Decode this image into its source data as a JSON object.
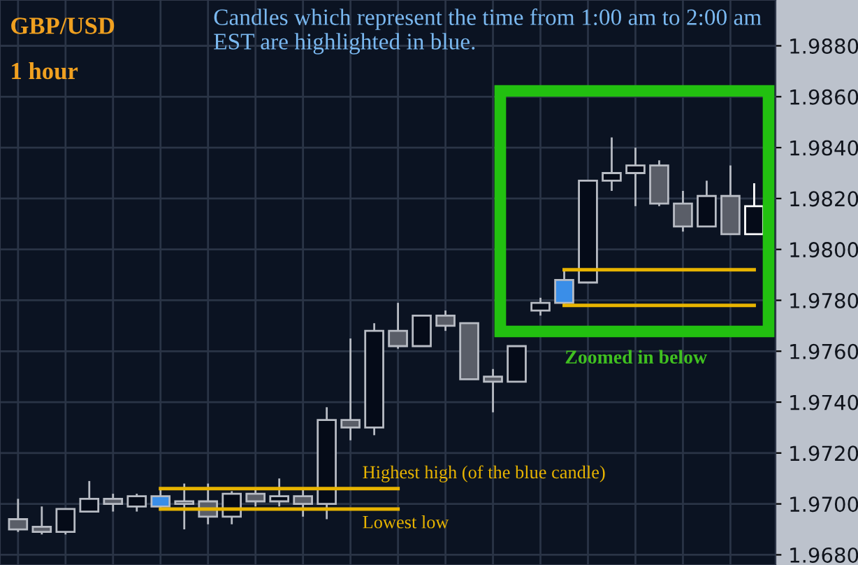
{
  "chart_data": {
    "type": "candlestick",
    "title": "GBP/USD",
    "subtitle": "1 hour",
    "annotations": [
      "Candles which represent the time from 1:00 am to 2:00 am EST are highlighted in blue.",
      "Zoomed in below"
    ],
    "categories": [
      null,
      null,
      null,
      null,
      null,
      null,
      null,
      null,
      null,
      null,
      null,
      null,
      null,
      null,
      null,
      null,
      null,
      null,
      null,
      null,
      null,
      null,
      null,
      null,
      null,
      null,
      null,
      null,
      null,
      null,
      null,
      null
    ],
    "ohlc": [
      [
        1.9694,
        1.9702,
        1.9689,
        1.969
      ],
      [
        1.9691,
        1.9699,
        1.9688,
        1.9689
      ],
      [
        1.9689,
        1.9698,
        1.9688,
        1.9698
      ],
      [
        1.9697,
        1.9709,
        1.9697,
        1.9702
      ],
      [
        1.9702,
        1.9704,
        1.9697,
        1.97
      ],
      [
        1.9699,
        1.9704,
        1.9697,
        1.9703
      ],
      [
        1.9699,
        1.9706,
        1.9698,
        1.9703
      ],
      [
        1.97,
        1.9708,
        1.969,
        1.9701
      ],
      [
        1.9701,
        1.9708,
        1.9692,
        1.9695
      ],
      [
        1.9695,
        1.9705,
        1.9692,
        1.9704
      ],
      [
        1.9704,
        1.9706,
        1.9699,
        1.9701
      ],
      [
        1.9701,
        1.971,
        1.9699,
        1.9703
      ],
      [
        1.9703,
        1.9706,
        1.9695,
        1.97
      ],
      [
        1.97,
        1.9738,
        1.9694,
        1.9733
      ],
      [
        1.9733,
        1.9765,
        1.9725,
        1.973
      ],
      [
        1.973,
        1.9771,
        1.9727,
        1.9768
      ],
      [
        1.9768,
        1.9779,
        1.9761,
        1.9762
      ],
      [
        1.9762,
        1.9774,
        1.9762,
        1.9774
      ],
      [
        1.9774,
        1.9776,
        1.9768,
        1.977
      ],
      [
        1.9771,
        1.9771,
        1.9749,
        1.9749
      ],
      [
        1.975,
        1.9753,
        1.9736,
        1.9748
      ],
      [
        1.9748,
        1.9762,
        1.9748,
        1.9762
      ],
      [
        1.9776,
        1.9781,
        1.9774,
        1.9779
      ],
      [
        1.9779,
        1.9792,
        1.9778,
        1.9788
      ],
      [
        1.9787,
        1.9827,
        1.9787,
        1.9827
      ],
      [
        1.9827,
        1.9844,
        1.9823,
        1.983
      ],
      [
        1.983,
        1.984,
        1.9817,
        1.9833
      ],
      [
        1.9833,
        1.9835,
        1.9817,
        1.9818
      ],
      [
        1.9818,
        1.9823,
        1.9807,
        1.9809
      ],
      [
        1.9809,
        1.9827,
        1.9809,
        1.9821
      ],
      [
        1.9821,
        1.9833,
        1.9806,
        1.9806
      ],
      [
        1.9806,
        1.9826,
        1.9806,
        1.9817
      ]
    ],
    "colors": [
      "#5a5e68",
      "#5a5e68",
      "#050b18",
      "#050b18",
      "#5a5e68",
      "#050b18",
      "#3a8ee8",
      "#050b18",
      "#5a5e68",
      "#050b18",
      "#5a5e68",
      "#050b18",
      "#5a5e68",
      "#050b18",
      "#5a5e68",
      "#050b18",
      "#5a5e68",
      "#050b18",
      "#5a5e68",
      "#5a5e68",
      "#5a5e68",
      "#050b18",
      "#050b18",
      "#3a8ee8",
      "#050b18",
      "#050b18",
      "#050b18",
      "#5a5e68",
      "#5a5e68",
      "#050b18",
      "#5a5e68",
      "#050b18"
    ],
    "series": [
      {
        "type": "line",
        "name": "Highest high (of the blue candle)",
        "color": "#e8b400",
        "values": [
          null,
          null,
          null,
          null,
          null,
          null,
          1.9706,
          1.9706,
          1.9706,
          1.9706,
          1.9706,
          1.9706,
          1.9706,
          1.9706,
          1.9706,
          1.9706,
          1.9706,
          null,
          null,
          null,
          null,
          null,
          null,
          null,
          null,
          null,
          null,
          null,
          null,
          null,
          null,
          null
        ]
      },
      {
        "type": "line",
        "name": "Lowest low",
        "color": "#e8b400",
        "values": [
          null,
          null,
          null,
          null,
          null,
          null,
          1.9698,
          1.9698,
          1.9698,
          1.9698,
          1.9698,
          1.9698,
          1.9698,
          1.9698,
          1.9698,
          1.9698,
          1.9698,
          null,
          null,
          null,
          null,
          null,
          null,
          null,
          null,
          null,
          null,
          null,
          null,
          null,
          null,
          null
        ]
      },
      {
        "type": "line",
        "color": "#e8b400",
        "values": [
          null,
          null,
          null,
          null,
          null,
          null,
          null,
          null,
          null,
          null,
          null,
          null,
          null,
          null,
          null,
          null,
          null,
          null,
          null,
          null,
          null,
          null,
          null,
          1.9792,
          1.9792,
          1.9792,
          1.9792,
          1.9792,
          1.9792,
          1.9792,
          1.9792,
          1.9792
        ]
      },
      {
        "type": "line",
        "color": "#e8b400",
        "values": [
          null,
          null,
          null,
          null,
          null,
          null,
          null,
          null,
          null,
          null,
          null,
          null,
          null,
          null,
          null,
          null,
          null,
          null,
          null,
          null,
          null,
          null,
          null,
          1.9778,
          1.9778,
          1.9778,
          1.9778,
          1.9778,
          1.9778,
          1.9778,
          1.9778,
          1.9778
        ]
      }
    ],
    "ylim": [
      1.9676,
      1.9898
    ],
    "yticks": [
      {
        "value": 1.968,
        "label": "1.9680"
      },
      {
        "value": 1.97,
        "label": "1.9700"
      },
      {
        "value": 1.972,
        "label": "1.9720"
      },
      {
        "value": 1.974,
        "label": "1.9740"
      },
      {
        "value": 1.976,
        "label": "1.9760"
      },
      {
        "value": 1.978,
        "label": "1.9780"
      },
      {
        "value": 1.98,
        "label": "1.9800"
      },
      {
        "value": 1.982,
        "label": "1.9820"
      },
      {
        "value": 1.984,
        "label": "1.9840"
      },
      {
        "value": 1.986,
        "label": "1.9860"
      },
      {
        "value": 1.988,
        "label": "1.9880"
      }
    ],
    "grid": true,
    "tick_labels": "y",
    "legend": false
  }
}
